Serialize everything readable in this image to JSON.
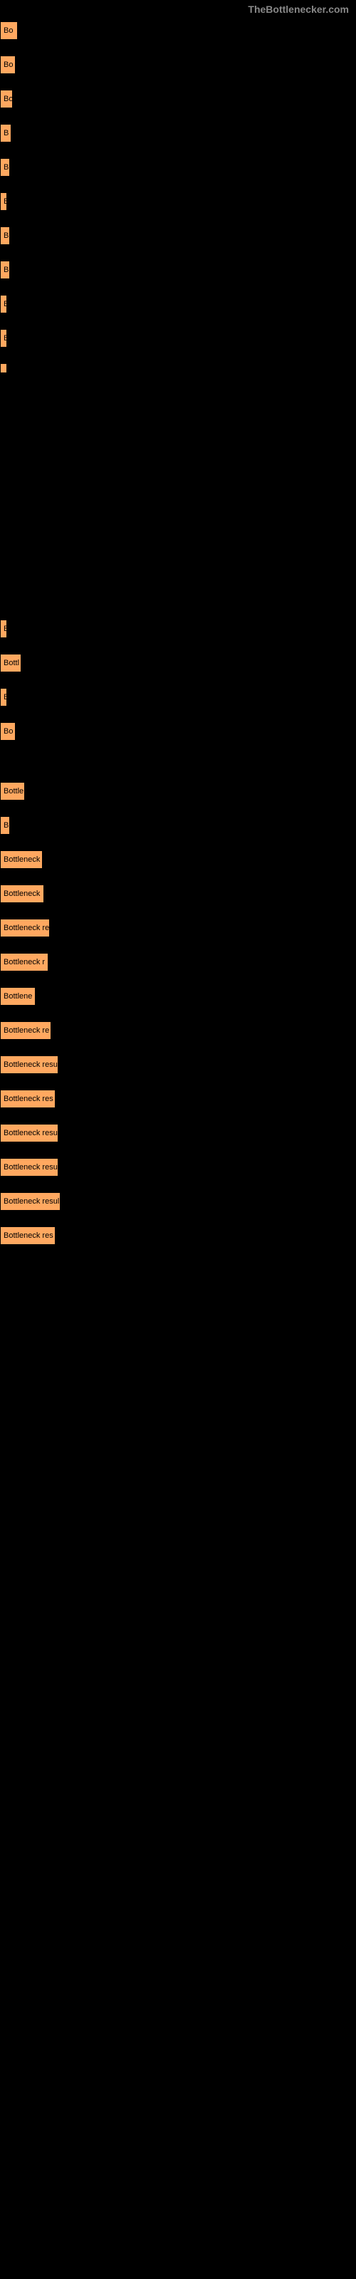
{
  "watermark": "TheBottlenecker.com",
  "chart": {
    "type": "bar",
    "orientation": "horizontal",
    "bar_color": "#ffa860",
    "border_color": "#000000",
    "background_color": "#000000",
    "text_color": "#000000",
    "watermark_color": "#888888",
    "font_size": 11,
    "max_width": 500,
    "bars": [
      {
        "label": "Bo",
        "width": 25
      },
      {
        "label": "Bo",
        "width": 22
      },
      {
        "label": "Bo",
        "width": 18
      },
      {
        "label": "B",
        "width": 16
      },
      {
        "label": "B",
        "width": 14
      },
      {
        "label": "B",
        "width": 10
      },
      {
        "label": "B",
        "width": 14
      },
      {
        "label": "B",
        "width": 14
      },
      {
        "label": "B",
        "width": 8
      },
      {
        "label": "B",
        "width": 6
      },
      {
        "label": "",
        "width": 2
      },
      {
        "label": "",
        "width": 0
      },
      {
        "label": "",
        "width": 0
      },
      {
        "label": "",
        "width": 0
      },
      {
        "label": "",
        "width": 0
      },
      {
        "label": "",
        "width": 0
      },
      {
        "label": "",
        "width": 0
      },
      {
        "label": "",
        "width": 0
      },
      {
        "label": "",
        "width": 0
      },
      {
        "label": "",
        "width": 0
      },
      {
        "label": "B",
        "width": 10
      },
      {
        "label": "Bottl",
        "width": 30
      },
      {
        "label": "B",
        "width": 10
      },
      {
        "label": "Bo",
        "width": 22
      },
      {
        "label": "",
        "width": 0
      },
      {
        "label": "Bottle",
        "width": 35
      },
      {
        "label": "B",
        "width": 14
      },
      {
        "label": "Bottleneck",
        "width": 60
      },
      {
        "label": "Bottleneck",
        "width": 62
      },
      {
        "label": "Bottleneck re",
        "width": 70
      },
      {
        "label": "Bottleneck r",
        "width": 68
      },
      {
        "label": "Bottlene",
        "width": 50
      },
      {
        "label": "Bottleneck re",
        "width": 72
      },
      {
        "label": "Bottleneck resu",
        "width": 82
      },
      {
        "label": "Bottleneck res",
        "width": 78
      },
      {
        "label": "Bottleneck resu",
        "width": 82
      },
      {
        "label": "Bottleneck resu",
        "width": 82
      },
      {
        "label": "Bottleneck resul",
        "width": 85
      },
      {
        "label": "Bottleneck res",
        "width": 78
      }
    ]
  }
}
